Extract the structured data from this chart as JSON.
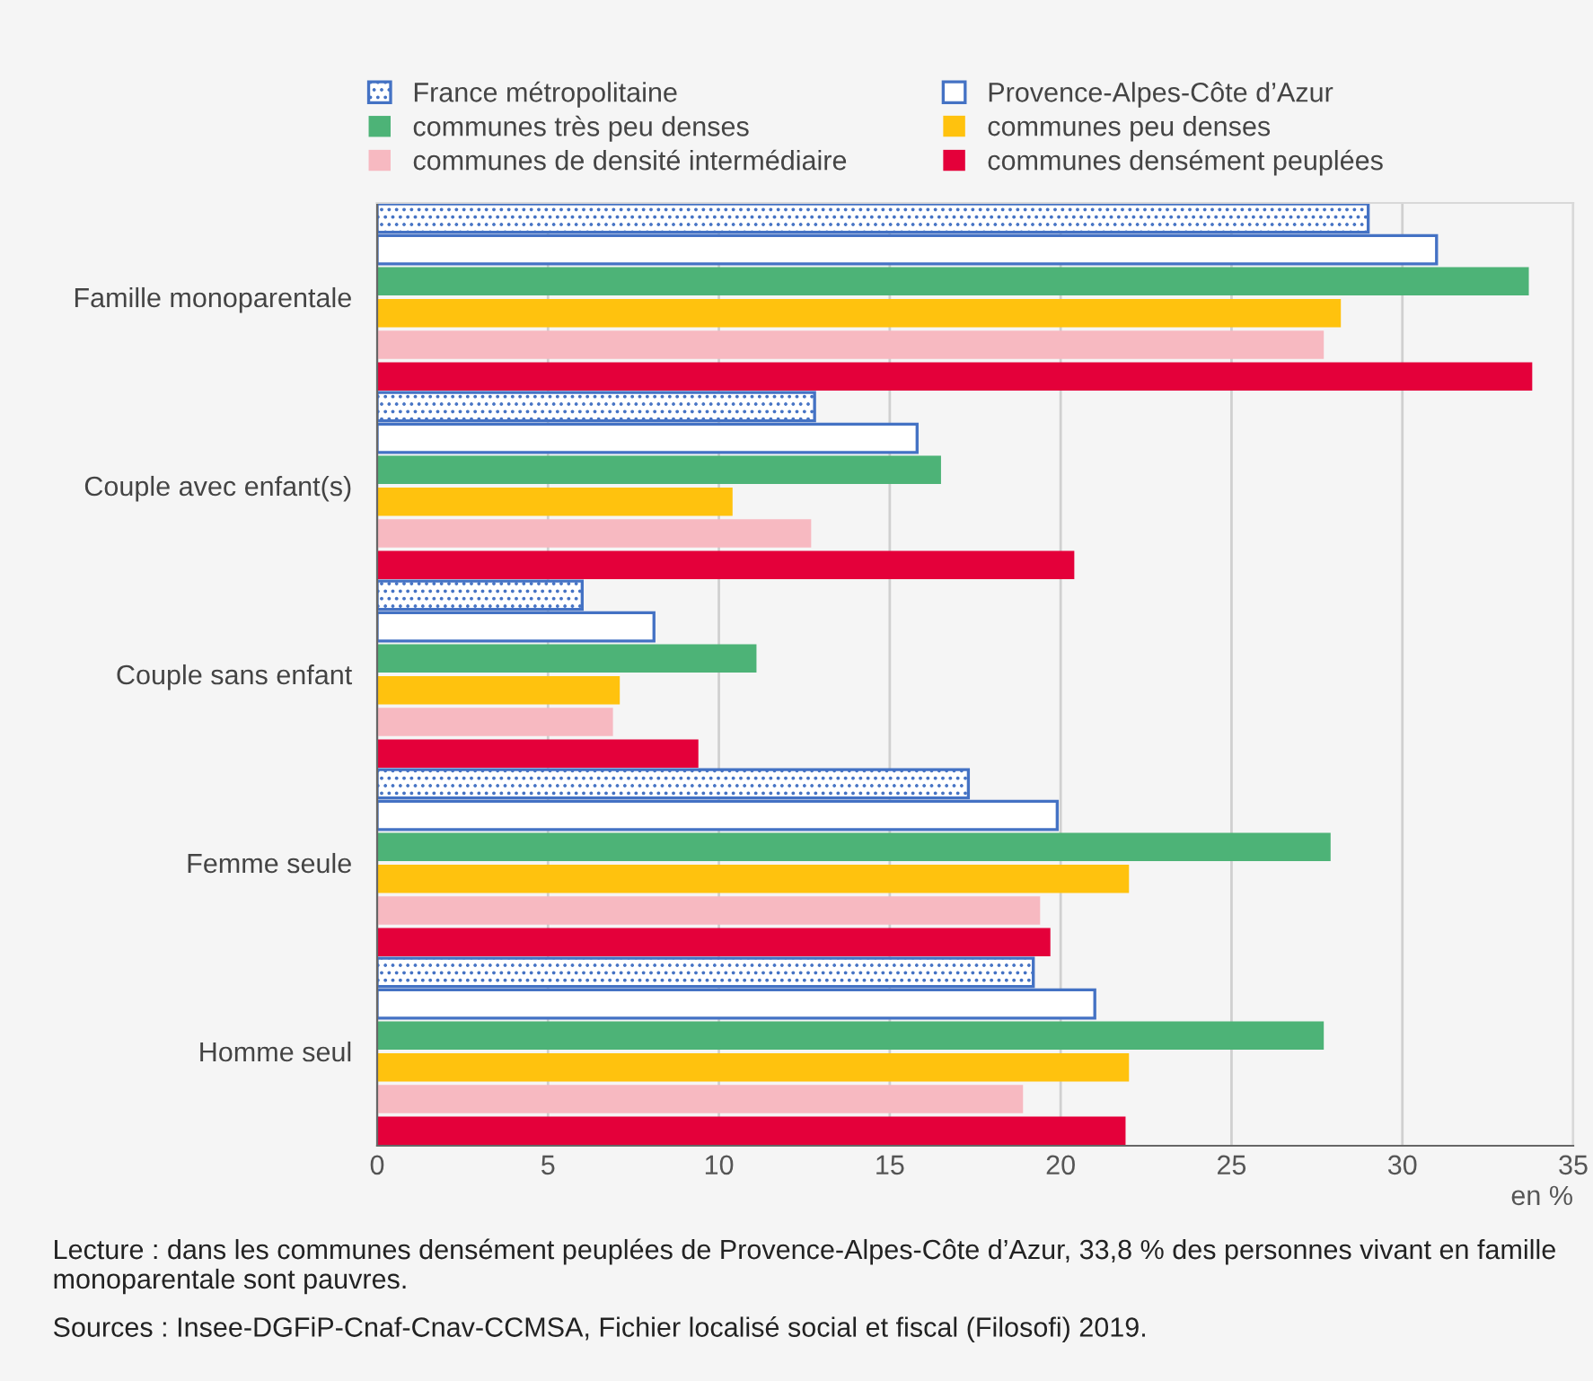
{
  "chart_data": {
    "type": "bar",
    "orientation": "horizontal",
    "xlabel": "en %",
    "categories": [
      "Famille monoparentale",
      "Couple avec enfant(s)",
      "Couple sans enfant",
      "Femme seule",
      "Homme seul"
    ],
    "series": [
      {
        "name": "France métropolitaine",
        "color": "#4472c4",
        "values": [
          29.0,
          12.8,
          6.0,
          17.3,
          19.2
        ]
      },
      {
        "name": "Provence-Alpes-Côte d’Azur",
        "color": "#4472c4",
        "values": [
          31.0,
          15.8,
          8.1,
          19.9,
          21.0
        ]
      },
      {
        "name": "communes très peu denses",
        "color": "#4db377",
        "values": [
          33.7,
          16.5,
          11.1,
          27.9,
          27.7
        ]
      },
      {
        "name": "communes peu denses",
        "color": "#ffc20e",
        "values": [
          28.2,
          10.4,
          7.1,
          22.0,
          22.0
        ]
      },
      {
        "name": "communes de densité intermédiaire",
        "color": "#f7b9c1",
        "values": [
          27.7,
          12.7,
          6.9,
          19.4,
          18.9
        ]
      },
      {
        "name": "communes densément peuplées",
        "color": "#e4003a",
        "values": [
          33.8,
          20.4,
          9.4,
          19.7,
          21.9
        ]
      }
    ],
    "xlim": [
      0,
      35
    ],
    "xticks": [
      0,
      5,
      10,
      15,
      20,
      25,
      30,
      35
    ],
    "grid": "x",
    "legend": "top",
    "annotations": [
      "Lecture : dans les communes densément peuplées de Provence-Alpes-Côte d’Azur, 33,8 % des personnes vivant en famille monoparentale sont pauvres.",
      "Sources : Insee-DGFiP-Cnaf-Cnav-CCMSA, Fichier localisé social et fiscal (Filosofi) 2019."
    ]
  }
}
